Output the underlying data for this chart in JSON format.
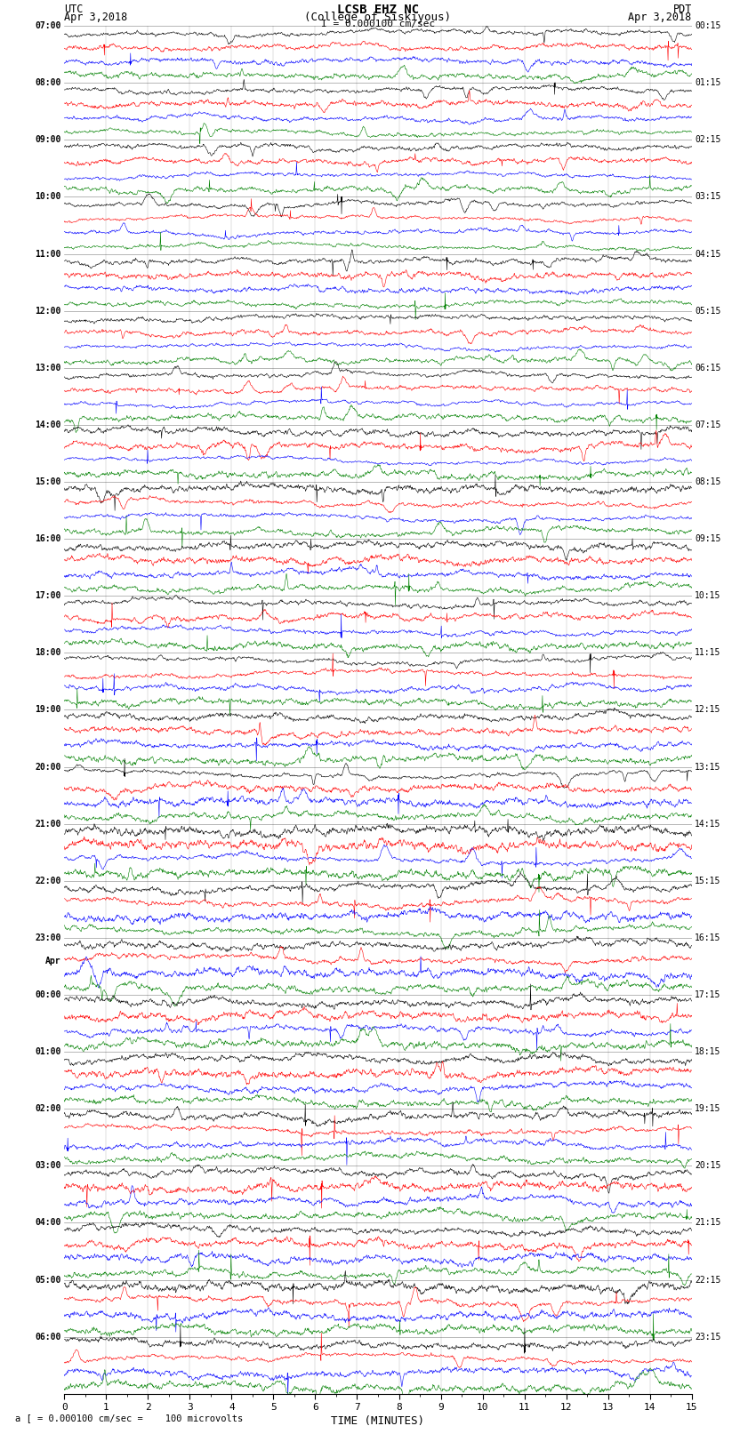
{
  "title_line1": "LCSB EHZ NC",
  "title_line2": "(College of Siskiyous)",
  "scale_label": "I = 0.000100 cm/sec",
  "utc_label": "UTC",
  "utc_date": "Apr 3,2018",
  "pdt_label": "PDT",
  "pdt_date": "Apr 3,2018",
  "bottom_label": "a [ = 0.000100 cm/sec =    100 microvolts",
  "xlabel": "TIME (MINUTES)",
  "time_min": 0,
  "time_max": 15,
  "fig_width": 8.5,
  "fig_height": 16.13,
  "dpi": 100,
  "colors": [
    "black",
    "red",
    "blue",
    "green"
  ],
  "bg_color": "white",
  "left_times_utc": [
    "07:00",
    "",
    "",
    "",
    "08:00",
    "",
    "",
    "",
    "09:00",
    "",
    "",
    "",
    "10:00",
    "",
    "",
    "",
    "11:00",
    "",
    "",
    "",
    "12:00",
    "",
    "",
    "",
    "13:00",
    "",
    "",
    "",
    "14:00",
    "",
    "",
    "",
    "15:00",
    "",
    "",
    "",
    "16:00",
    "",
    "",
    "",
    "17:00",
    "",
    "",
    "",
    "18:00",
    "",
    "",
    "",
    "19:00",
    "",
    "",
    "",
    "20:00",
    "",
    "",
    "",
    "21:00",
    "",
    "",
    "",
    "22:00",
    "",
    "",
    "",
    "23:00",
    "",
    "",
    "",
    "Apr",
    "00:00",
    "",
    "",
    "",
    "01:00",
    "",
    "",
    "",
    "02:00",
    "",
    "",
    "",
    "03:00",
    "",
    "",
    "",
    "04:00",
    "",
    "",
    "",
    "05:00",
    "",
    "",
    "",
    "06:00",
    "",
    ""
  ],
  "right_times_pdt": [
    "00:15",
    "",
    "",
    "",
    "01:15",
    "",
    "",
    "",
    "02:15",
    "",
    "",
    "",
    "03:15",
    "",
    "",
    "",
    "04:15",
    "",
    "",
    "",
    "05:15",
    "",
    "",
    "",
    "06:15",
    "",
    "",
    "",
    "07:15",
    "",
    "",
    "",
    "08:15",
    "",
    "",
    "",
    "09:15",
    "",
    "",
    "",
    "10:15",
    "",
    "",
    "",
    "11:15",
    "",
    "",
    "",
    "12:15",
    "",
    "",
    "",
    "13:15",
    "",
    "",
    "",
    "14:15",
    "",
    "",
    "",
    "15:15",
    "",
    "",
    "",
    "16:15",
    "",
    "",
    "",
    "17:15",
    "",
    "",
    "",
    "18:15",
    "",
    "",
    "",
    "19:15",
    "",
    "",
    "",
    "20:15",
    "",
    "",
    "",
    "21:15",
    "",
    "",
    "",
    "22:15",
    "",
    "",
    "",
    "23:15",
    "",
    ""
  ],
  "n_rows": 23,
  "traces_per_row": 4,
  "seed": 42
}
